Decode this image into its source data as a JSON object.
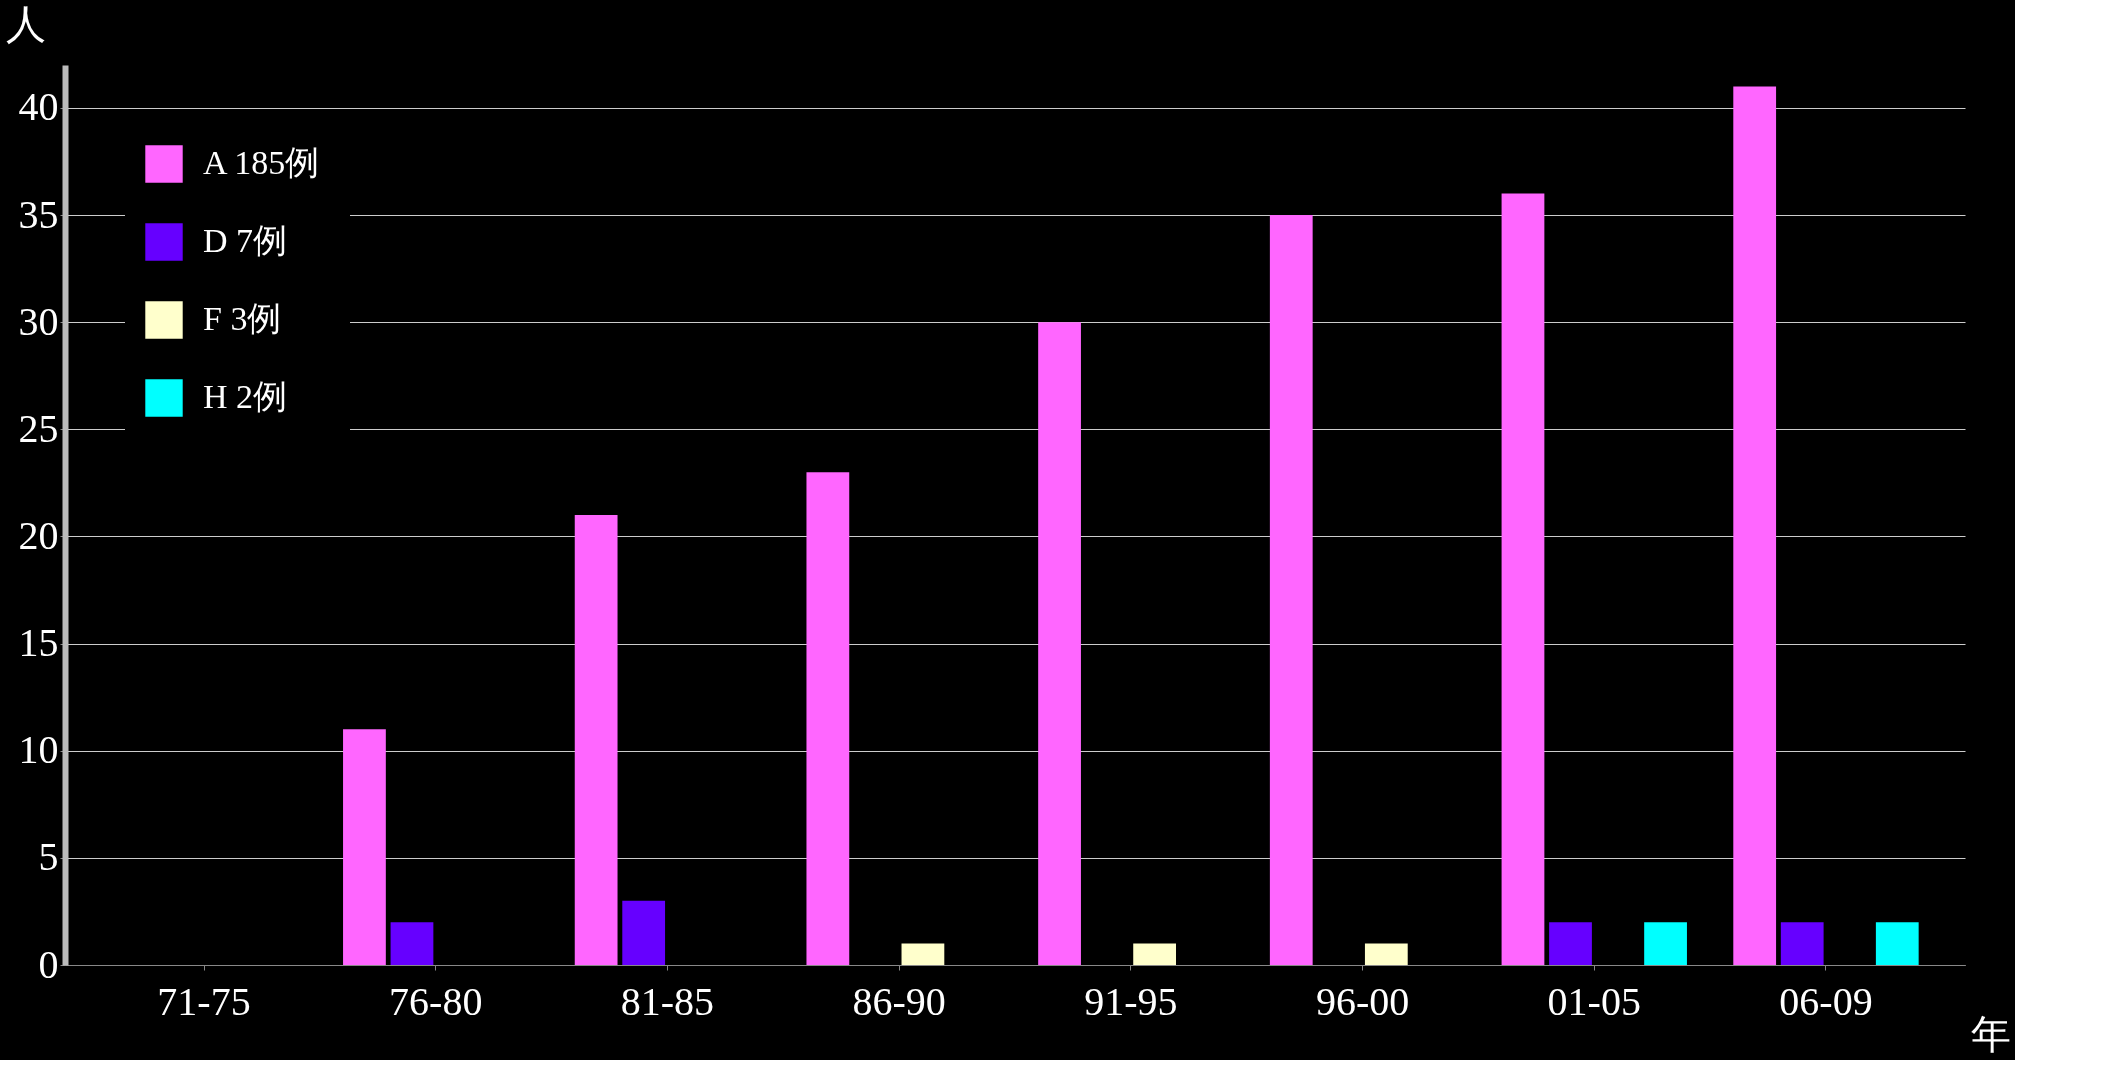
{
  "chart_data": {
    "type": "bar",
    "xlabel": "年",
    "ylabel": "人",
    "categories": [
      "71-75",
      "76-80",
      "81-85",
      "86-90",
      "91-95",
      "96-00",
      "01-05",
      "06-09"
    ],
    "series": [
      {
        "name": "A  185例",
        "color": "#ff66ff",
        "values": [
          0,
          11,
          21,
          23,
          30,
          35,
          36,
          41
        ]
      },
      {
        "name": "D 7例",
        "color": "#6600ff",
        "values": [
          0,
          2,
          3,
          0,
          0,
          0,
          2,
          2
        ]
      },
      {
        "name": "F 3例",
        "color": "#ffffcc",
        "values": [
          0,
          0,
          0,
          1,
          1,
          1,
          0,
          0
        ]
      },
      {
        "name": "H  2例",
        "color": "#00ffff",
        "values": [
          0,
          0,
          0,
          0,
          0,
          0,
          2,
          2
        ]
      }
    ],
    "ylim": [
      0,
      42
    ],
    "yticks": [
      0,
      5,
      10,
      15,
      20,
      25,
      30,
      35,
      40
    ],
    "grid": "y",
    "legend": "top left"
  }
}
